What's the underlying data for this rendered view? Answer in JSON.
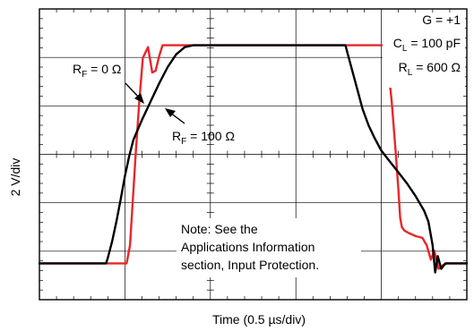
{
  "chart_data": {
    "type": "line",
    "ylabel": "2 V/div",
    "xlabel": "Time (0.5 µs/div)",
    "x_unit": "µs",
    "y_unit": "V",
    "xlim": [
      0,
      5
    ],
    "ylim": [
      -8,
      8
    ],
    "grid": true,
    "conditions": [
      {
        "main": "G = +1"
      },
      {
        "main": "C",
        "sub": "L",
        "rest": " = 100 pF"
      },
      {
        "main": "R",
        "sub": "L",
        "rest": " = 600 Ω"
      }
    ],
    "note": [
      "Note: See the",
      "Applications Information",
      "section, Input Protection."
    ],
    "series": [
      {
        "name_main": "R",
        "name_sub": "F",
        "name_rest": " = 0 Ω",
        "color": "#e8262a",
        "x": [
          0,
          1.02,
          1.06,
          1.1,
          1.13,
          1.17,
          1.21,
          1.27,
          1.32,
          1.36,
          1.4,
          1.44,
          1.5,
          1.6,
          1.8,
          2.5,
          3.5,
          4.05,
          4.12,
          4.17,
          4.2,
          4.22,
          4.24,
          4.27,
          4.33,
          4.4,
          4.48,
          4.53,
          4.58,
          4.62,
          4.67,
          4.72,
          4.77,
          4.85,
          5.0
        ],
        "y": [
          -6.0,
          -6.0,
          -5.0,
          -2.0,
          0.3,
          3.0,
          5.3,
          5.9,
          4.5,
          4.6,
          5.4,
          6.0,
          6.0,
          6.0,
          6.0,
          6.0,
          6.0,
          6.0,
          3.0,
          0.0,
          -2.0,
          -3.5,
          -4.0,
          -4.2,
          -4.35,
          -4.5,
          -4.6,
          -5.0,
          -5.8,
          -5.3,
          -6.3,
          -6.1,
          -6.0,
          -6.0,
          -6.0
        ]
      },
      {
        "name_main": "R",
        "name_sub": "F",
        "name_rest": " = 100 Ω",
        "color": "#000000",
        "x": [
          0,
          0.78,
          0.8,
          0.85,
          0.9,
          0.95,
          1.0,
          1.05,
          1.1,
          1.2,
          1.3,
          1.4,
          1.5,
          1.6,
          1.7,
          1.8,
          2.0,
          3.0,
          3.58,
          3.62,
          3.7,
          3.78,
          3.85,
          3.92,
          4.0,
          4.1,
          4.2,
          4.3,
          4.4,
          4.5,
          4.55,
          4.6,
          4.63,
          4.66,
          4.7,
          4.75,
          4.85,
          5.0
        ],
        "y": [
          -6.0,
          -6.0,
          -5.7,
          -4.8,
          -3.7,
          -2.5,
          -1.2,
          -0.1,
          0.8,
          1.9,
          2.9,
          3.9,
          4.8,
          5.5,
          5.9,
          6.0,
          6.0,
          6.0,
          6.0,
          5.3,
          3.9,
          2.5,
          1.6,
          0.9,
          0.2,
          -0.4,
          -1.0,
          -1.6,
          -2.3,
          -3.1,
          -3.7,
          -5.0,
          -6.5,
          -5.6,
          -6.3,
          -6.0,
          -6.0,
          -6.0
        ]
      }
    ],
    "annotations": [
      {
        "series": 0,
        "text_main": "R",
        "text_sub": "F",
        "text_rest": " = 0 Ω",
        "arrow_to": [
          1.05,
          -1.0
        ]
      },
      {
        "series": 1,
        "text_main": "R",
        "text_sub": "F",
        "text_rest": " = 100 Ω",
        "arrow_to": [
          1.2,
          1.9
        ]
      }
    ]
  }
}
